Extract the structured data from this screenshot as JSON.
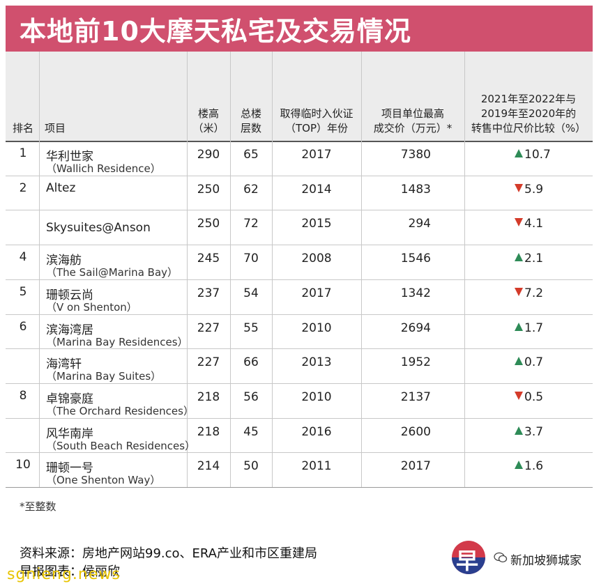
{
  "title": "本地前10大摩天私宅及交易情况",
  "headers": {
    "rank": "排名",
    "project": "项目",
    "height": [
      "楼高",
      "（米）"
    ],
    "floors": [
      "总楼",
      "层数"
    ],
    "top": [
      "取得临时入伙证",
      "（TOP）年份"
    ],
    "price": [
      "项目单位最高",
      "成交价（万元）*"
    ],
    "change": [
      "2021年至2022年与",
      "2019年至2020年的",
      "转售中位尺价比较（%）"
    ]
  },
  "rows": [
    {
      "rank": "1",
      "cn": "华利世家",
      "en": "（Wallich Residence）",
      "height": "290",
      "floors": "65",
      "top": "2017",
      "price": "7380",
      "dir": "up",
      "change": "10.7"
    },
    {
      "rank": "2",
      "cn": "Altez",
      "en": "",
      "height": "250",
      "floors": "62",
      "top": "2014",
      "price": "1483",
      "dir": "down",
      "change": "5.9"
    },
    {
      "rank": "",
      "cn": "Skysuites@Anson",
      "en": "",
      "height": "250",
      "floors": "72",
      "top": "2015",
      "price": "294",
      "dir": "down",
      "change": "4.1"
    },
    {
      "rank": "4",
      "cn": "滨海舫",
      "en": "（The Sail@Marina Bay）",
      "height": "245",
      "floors": "70",
      "top": "2008",
      "price": "1546",
      "dir": "up",
      "change": "2.1"
    },
    {
      "rank": "5",
      "cn": "珊顿云尚",
      "en": "（V on Shenton）",
      "height": "237",
      "floors": "54",
      "top": "2017",
      "price": "1342",
      "dir": "down",
      "change": "7.2"
    },
    {
      "rank": "6",
      "cn": "滨海湾居",
      "en": "（Marina Bay Residences）",
      "height": "227",
      "floors": "55",
      "top": "2010",
      "price": "2694",
      "dir": "up",
      "change": "1.7"
    },
    {
      "rank": "",
      "cn": "海湾轩",
      "en": "（Marina Bay Suites）",
      "height": "227",
      "floors": "66",
      "top": "2013",
      "price": "1952",
      "dir": "up",
      "change": "0.7"
    },
    {
      "rank": "8",
      "cn": "卓锦豪庭",
      "en": "（The Orchard Residences）",
      "height": "218",
      "floors": "56",
      "top": "2010",
      "price": "2137",
      "dir": "down",
      "change": "0.5"
    },
    {
      "rank": "",
      "cn": "风华南岸",
      "en": "（South Beach Residences）",
      "height": "218",
      "floors": "45",
      "top": "2016",
      "price": "2600",
      "dir": "up",
      "change": "3.7"
    },
    {
      "rank": "10",
      "cn": "珊顿一号",
      "en": "（One Shenton Way）",
      "height": "214",
      "floors": "50",
      "top": "2011",
      "price": "2017",
      "dir": "up",
      "change": "1.6"
    }
  ],
  "footnote": "*至整数",
  "source": "资料来源：房地产网站99.co、ERA产业和市区重建局",
  "credit": "早报图表：侯丽欣",
  "watermark": "sgnieng.news",
  "logo_char": "早",
  "brand": "新加坡狮城家",
  "colors": {
    "banner": "#d0506e",
    "up": "#2e8b57",
    "down": "#d43b2a"
  }
}
